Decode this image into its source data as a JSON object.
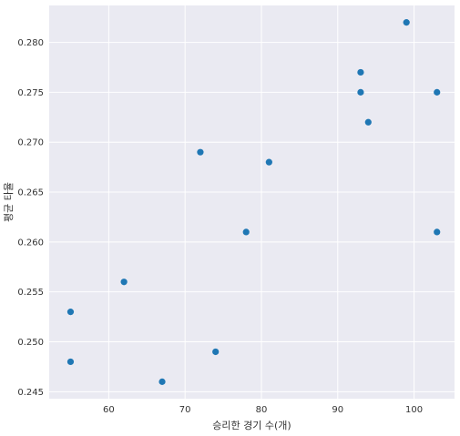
{
  "chart_data": {
    "type": "scatter",
    "xlabel": "승리한 경기 수(개)",
    "ylabel": "평균 타율",
    "xlim": [
      52.2,
      105.3
    ],
    "ylim": [
      0.2443,
      0.2837
    ],
    "x_ticks": [
      60,
      70,
      80,
      90,
      100
    ],
    "y_ticks": [
      0.245,
      0.25,
      0.255,
      0.26,
      0.265,
      0.27,
      0.275,
      0.28
    ],
    "grid": true,
    "background": "#eaeaf2",
    "point_color": "#1f77b4",
    "points": [
      {
        "x": 99,
        "y": 0.282
      },
      {
        "x": 93,
        "y": 0.277
      },
      {
        "x": 93,
        "y": 0.275
      },
      {
        "x": 103,
        "y": 0.275
      },
      {
        "x": 94,
        "y": 0.272
      },
      {
        "x": 72,
        "y": 0.269
      },
      {
        "x": 81,
        "y": 0.268
      },
      {
        "x": 78,
        "y": 0.261
      },
      {
        "x": 103,
        "y": 0.261
      },
      {
        "x": 62,
        "y": 0.256
      },
      {
        "x": 55,
        "y": 0.253
      },
      {
        "x": 74,
        "y": 0.249
      },
      {
        "x": 55,
        "y": 0.248
      },
      {
        "x": 67,
        "y": 0.246
      }
    ]
  }
}
